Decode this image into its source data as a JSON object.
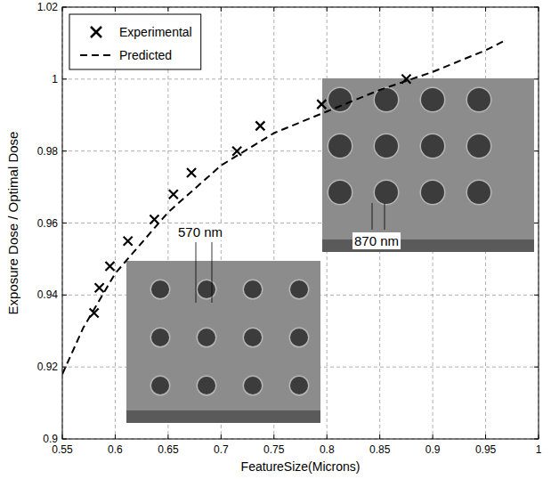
{
  "chart_data": {
    "type": "scatter",
    "x_label": "FeatureSize(Microns)",
    "y_label": "Exposure Dose / Optimal Dose",
    "xlim": [
      0.55,
      1
    ],
    "ylim": [
      0.9,
      1.02
    ],
    "xticks": [
      0.55,
      0.6,
      0.65,
      0.7,
      0.75,
      0.8,
      0.85,
      0.9,
      0.95,
      1
    ],
    "yticks": [
      0.9,
      0.92,
      0.94,
      0.96,
      0.98,
      1,
      1.02
    ],
    "grid": true,
    "legend": "upper left",
    "series": [
      {
        "name": "Experimental",
        "type": "scatter",
        "marker": "x",
        "color": "#000000",
        "x": [
          0.58,
          0.585,
          0.595,
          0.612,
          0.637,
          0.655,
          0.672,
          0.715,
          0.737,
          0.795,
          0.875
        ],
        "values": [
          0.935,
          0.942,
          0.948,
          0.955,
          0.961,
          0.968,
          0.974,
          0.98,
          0.987,
          0.993,
          1.0
        ]
      },
      {
        "name": "Predicted",
        "type": "line",
        "line_style": "dashed",
        "color": "#000000",
        "x": [
          0.55,
          0.57,
          0.6,
          0.65,
          0.7,
          0.75,
          0.8,
          0.85,
          0.9,
          0.95,
          0.97
        ],
        "values": [
          0.918,
          0.931,
          0.946,
          0.963,
          0.976,
          0.985,
          0.991,
          0.997,
          1.002,
          1.008,
          1.011
        ]
      }
    ],
    "annotations": [
      {
        "text": "570 nm"
      },
      {
        "text": "870 nm"
      }
    ]
  }
}
